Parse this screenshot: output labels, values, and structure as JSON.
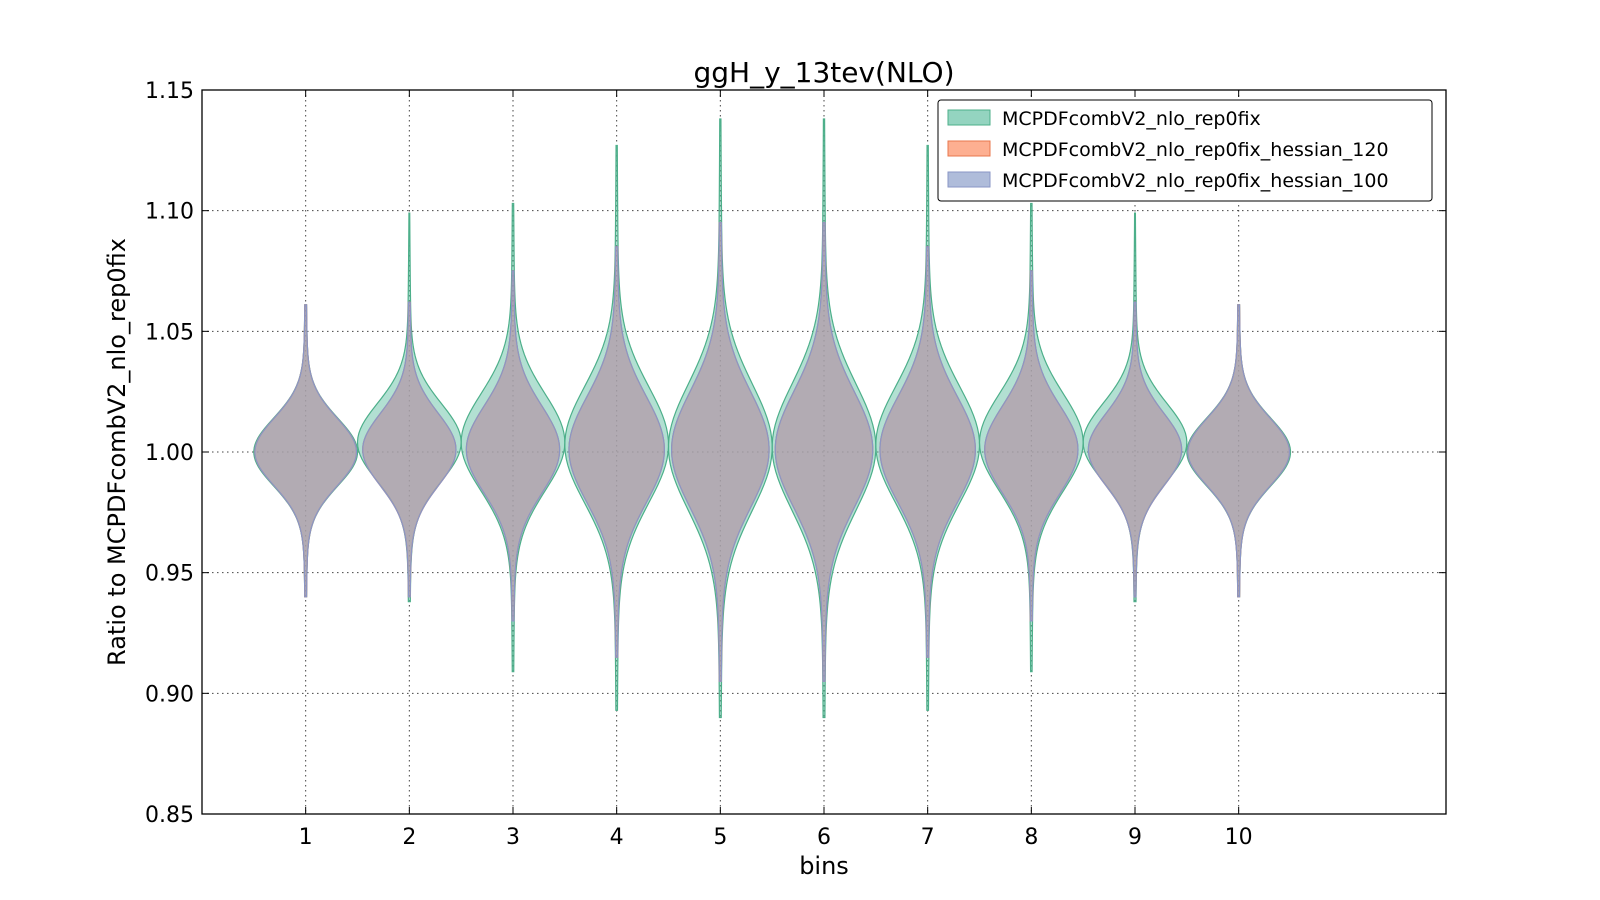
{
  "chart_data": {
    "type": "violin",
    "title": "ggH_y_13tev(NLO)",
    "xlabel": "bins",
    "ylabel": "Ratio to MCPDFcombV2_nlo_rep0fix",
    "ylim": [
      0.85,
      1.15
    ],
    "xlim": [
      0,
      12
    ],
    "grid": true,
    "legend_position": "top-right",
    "categories": [
      "1",
      "2",
      "3",
      "4",
      "5",
      "6",
      "7",
      "8",
      "9",
      "10"
    ],
    "x": [
      1,
      2,
      3,
      4,
      5,
      6,
      7,
      8,
      9,
      10
    ],
    "yticks": [
      "0.85",
      "0.90",
      "0.95",
      "1.00",
      "1.05",
      "1.10",
      "1.15"
    ],
    "yticks_values": [
      0.85,
      0.9,
      0.95,
      1.0,
      1.05,
      1.1,
      1.15
    ],
    "series": [
      {
        "name": "MCPDFcombV2_nlo_rep0fix",
        "color": "#66c2a5",
        "edge": "#4daf8a",
        "center": [
          1.0,
          1.004,
          1.004,
          1.003,
          1.002,
          1.002,
          1.003,
          1.004,
          1.004,
          1.0
        ],
        "min": [
          0.94,
          0.938,
          0.909,
          0.893,
          0.89,
          0.89,
          0.893,
          0.909,
          0.938,
          0.94
        ],
        "max": [
          1.061,
          1.099,
          1.103,
          1.127,
          1.138,
          1.138,
          1.127,
          1.103,
          1.099,
          1.061
        ],
        "sigma": [
          0.014,
          0.016,
          0.02,
          0.024,
          0.026,
          0.026,
          0.024,
          0.02,
          0.016,
          0.014
        ],
        "halfwidth": [
          0.5,
          0.5,
          0.5,
          0.5,
          0.5,
          0.5,
          0.5,
          0.5,
          0.5,
          0.5
        ]
      },
      {
        "name": "MCPDFcombV2_nlo_rep0fix_hessian_120",
        "color": "#fc8d62",
        "edge": "#e8774d",
        "center": [
          1.0,
          1.001,
          1.001,
          1.001,
          1.001,
          1.001,
          1.001,
          1.001,
          1.001,
          1.0
        ],
        "min": [
          0.94,
          0.94,
          0.93,
          0.915,
          0.905,
          0.905,
          0.915,
          0.93,
          0.94,
          0.94
        ],
        "max": [
          1.061,
          1.062,
          1.075,
          1.085,
          1.095,
          1.095,
          1.085,
          1.075,
          1.062,
          1.061
        ],
        "sigma": [
          0.014,
          0.015,
          0.018,
          0.022,
          0.024,
          0.024,
          0.022,
          0.018,
          0.015,
          0.014
        ],
        "halfwidth": [
          0.49,
          0.45,
          0.45,
          0.46,
          0.47,
          0.47,
          0.46,
          0.45,
          0.45,
          0.49
        ]
      },
      {
        "name": "MCPDFcombV2_nlo_rep0fix_hessian_100",
        "color": "#8da0cb",
        "edge": "#8a96c6",
        "center": [
          1.0,
          1.001,
          1.001,
          1.001,
          1.001,
          1.001,
          1.001,
          1.001,
          1.001,
          1.0
        ],
        "min": [
          0.94,
          0.94,
          0.93,
          0.915,
          0.905,
          0.905,
          0.915,
          0.93,
          0.94,
          0.94
        ],
        "max": [
          1.061,
          1.062,
          1.075,
          1.085,
          1.095,
          1.095,
          1.085,
          1.075,
          1.062,
          1.061
        ],
        "sigma": [
          0.014,
          0.015,
          0.018,
          0.022,
          0.024,
          0.024,
          0.022,
          0.018,
          0.015,
          0.014
        ],
        "halfwidth": [
          0.49,
          0.45,
          0.45,
          0.46,
          0.47,
          0.47,
          0.46,
          0.45,
          0.45,
          0.49
        ]
      }
    ]
  }
}
